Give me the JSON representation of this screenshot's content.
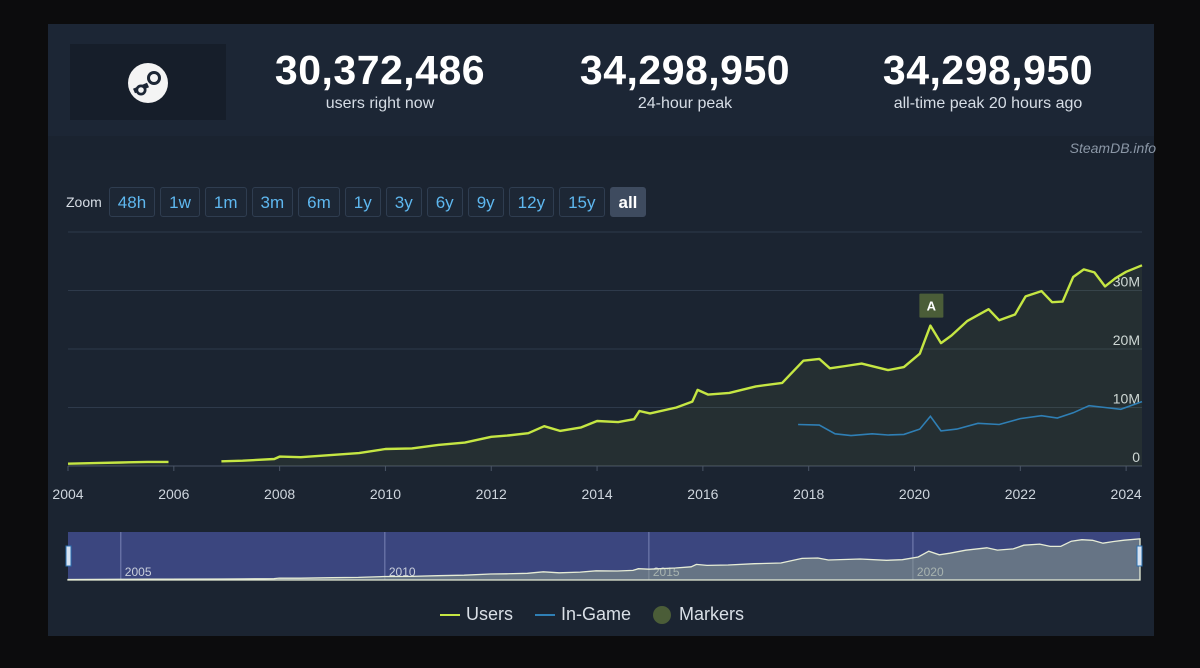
{
  "stats": [
    {
      "value": "30,372,486",
      "label": "users right now"
    },
    {
      "value": "34,298,950",
      "label": "24-hour peak"
    },
    {
      "value": "34,298,950",
      "label": "all-time peak 20 hours ago"
    }
  ],
  "attribution": "SteamDB.info",
  "zoom": {
    "label": "Zoom",
    "buttons": [
      "48h",
      "1w",
      "1m",
      "3m",
      "6m",
      "1y",
      "3y",
      "6y",
      "9y",
      "12y",
      "15y",
      "all"
    ],
    "active": "all"
  },
  "legend": [
    {
      "name": "Users",
      "color": "#c5e643",
      "kind": "line"
    },
    {
      "name": "In-Game",
      "color": "#2f7fb5",
      "kind": "line"
    },
    {
      "name": "Markers",
      "color": "#4b5d38",
      "kind": "dot"
    }
  ],
  "colors": {
    "users": "#c5e643",
    "ingame": "#2f7fb5",
    "marker": "#4b5d38",
    "navigator_fill": "#3f4a8a"
  },
  "chart_data": {
    "type": "line",
    "x_ticks": [
      "2004",
      "2006",
      "2008",
      "2010",
      "2012",
      "2014",
      "2016",
      "2018",
      "2020",
      "2022",
      "2024"
    ],
    "y_ticks": [
      "0",
      "10M",
      "20M",
      "30M"
    ],
    "ylim": [
      0,
      40000000
    ],
    "series": [
      {
        "name": "Users",
        "points": [
          [
            2004.0,
            0.4
          ],
          [
            2004.5,
            0.5
          ],
          [
            2005.0,
            0.6
          ],
          [
            2005.5,
            0.7
          ],
          [
            2005.9,
            0.7
          ],
          [
            null,
            null
          ],
          [
            2006.9,
            0.8
          ],
          [
            2007.3,
            0.9
          ],
          [
            2007.9,
            1.2
          ],
          [
            2008.0,
            1.6
          ],
          [
            2008.4,
            1.5
          ],
          [
            2009.0,
            1.9
          ],
          [
            2009.5,
            2.2
          ],
          [
            2010.0,
            2.9
          ],
          [
            2010.5,
            3.0
          ],
          [
            2011.0,
            3.6
          ],
          [
            2011.5,
            4.0
          ],
          [
            2012.0,
            5.0
          ],
          [
            2012.3,
            5.2
          ],
          [
            2012.7,
            5.6
          ],
          [
            2013.0,
            6.8
          ],
          [
            2013.3,
            6.0
          ],
          [
            2013.7,
            6.6
          ],
          [
            2014.0,
            7.7
          ],
          [
            2014.4,
            7.5
          ],
          [
            2014.7,
            8.0
          ],
          [
            2014.8,
            9.4
          ],
          [
            2015.0,
            9.0
          ],
          [
            2015.5,
            10.0
          ],
          [
            2015.8,
            11.0
          ],
          [
            2015.9,
            13.0
          ],
          [
            2016.1,
            12.2
          ],
          [
            2016.5,
            12.5
          ],
          [
            2017.0,
            13.6
          ],
          [
            2017.5,
            14.2
          ],
          [
            2017.9,
            18.0
          ],
          [
            2018.2,
            18.3
          ],
          [
            2018.4,
            16.7
          ],
          [
            2018.7,
            17.1
          ],
          [
            2019.0,
            17.5
          ],
          [
            2019.5,
            16.4
          ],
          [
            2019.8,
            16.9
          ],
          [
            2020.1,
            19.2
          ],
          [
            2020.3,
            24.0
          ],
          [
            2020.5,
            21.0
          ],
          [
            2020.7,
            22.3
          ],
          [
            2021.0,
            24.8
          ],
          [
            2021.4,
            26.8
          ],
          [
            2021.6,
            24.9
          ],
          [
            2021.9,
            25.9
          ],
          [
            2022.1,
            29.0
          ],
          [
            2022.4,
            29.9
          ],
          [
            2022.6,
            28.0
          ],
          [
            2022.8,
            28.1
          ],
          [
            2023.0,
            32.3
          ],
          [
            2023.2,
            33.6
          ],
          [
            2023.4,
            33.1
          ],
          [
            2023.6,
            30.7
          ],
          [
            2023.8,
            32.1
          ],
          [
            2024.0,
            33.2
          ],
          [
            2024.3,
            34.3
          ]
        ]
      },
      {
        "name": "In-Game",
        "points": [
          [
            2017.8,
            7.1
          ],
          [
            2018.2,
            7.0
          ],
          [
            2018.5,
            5.5
          ],
          [
            2018.8,
            5.2
          ],
          [
            2019.2,
            5.5
          ],
          [
            2019.5,
            5.3
          ],
          [
            2019.8,
            5.4
          ],
          [
            2020.1,
            6.3
          ],
          [
            2020.3,
            8.5
          ],
          [
            2020.5,
            6.0
          ],
          [
            2020.8,
            6.3
          ],
          [
            2021.2,
            7.3
          ],
          [
            2021.6,
            7.1
          ],
          [
            2022.0,
            8.1
          ],
          [
            2022.4,
            8.6
          ],
          [
            2022.7,
            8.2
          ],
          [
            2023.0,
            9.1
          ],
          [
            2023.3,
            10.3
          ],
          [
            2023.6,
            10.0
          ],
          [
            2023.9,
            9.7
          ],
          [
            2024.3,
            11.0
          ]
        ],
        "y_unit": "millions"
      }
    ],
    "markers": [
      {
        "label": "A",
        "x": 2020.3
      }
    ],
    "navigator": {
      "x_ticks": [
        "2005",
        "2010",
        "2015",
        "2020"
      ]
    },
    "x_range": [
      2004,
      2024.3
    ],
    "grid": true
  }
}
